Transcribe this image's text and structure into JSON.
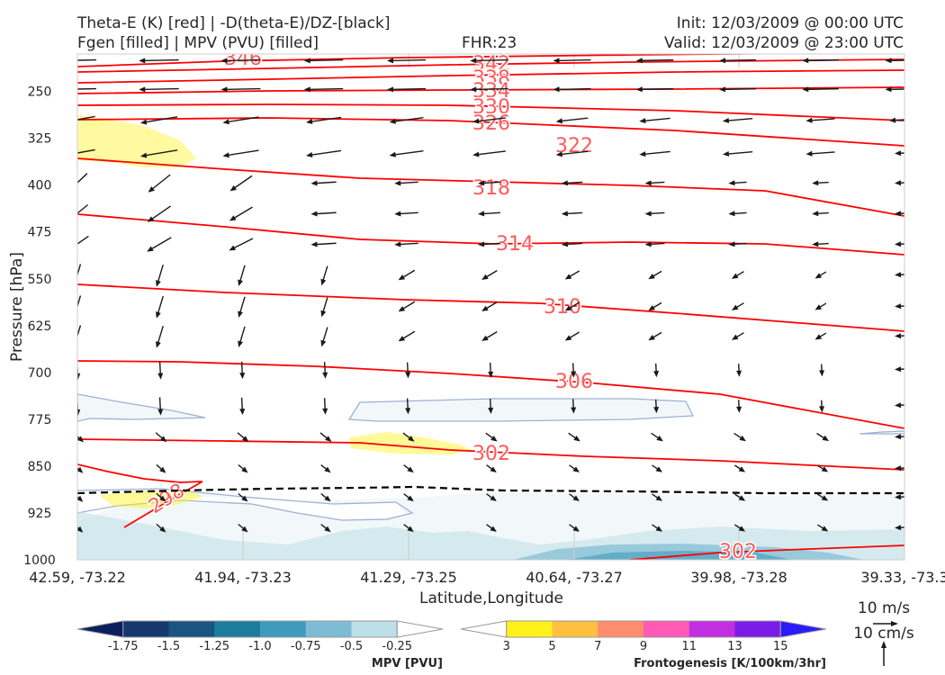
{
  "header": {
    "title_line1_left": "Theta-E (K) [red] | -D(theta-E)/DZ-[black]",
    "title_line2_left": "Fgen [filled] | MPV (PVU) [filled]",
    "fhr": "FHR:23",
    "init": "Init: 12/03/2009 @ 00:00 UTC",
    "valid": "Valid: 12/03/2009 @ 23:00 UTC"
  },
  "chart_data": {
    "type": "cross-section",
    "ylabel": "Pressure [hPa]",
    "xlabel": "Latitude,Longitude",
    "y_ticks": [
      250,
      325,
      400,
      475,
      550,
      625,
      700,
      775,
      850,
      925,
      1000
    ],
    "ylim": [
      1000,
      190
    ],
    "y_scale": "linear-inverted",
    "x_ticks": [
      "42.59, -73.22",
      "41.94, -73.23",
      "41.29, -73.25",
      "40.64, -73.27",
      "39.98, -73.28",
      "39.33, -73.3"
    ],
    "theta_e_contours": {
      "color": "#ff0000",
      "labels": [
        "346",
        "342",
        "338",
        "334",
        "330",
        "326",
        "322",
        "318",
        "314",
        "310",
        "306",
        "302",
        "298",
        "302"
      ]
    },
    "stability_line": {
      "color": "#000000",
      "style": "dashed"
    },
    "wind_vectors": {
      "color": "#1a1a1a"
    },
    "mpv_colorbar": {
      "label": "MPV [PVU]",
      "ticks": [
        "-1.75",
        "-1.5",
        "-1.25",
        "-1.0",
        "-0.75",
        "-0.5",
        "-0.25"
      ],
      "colors": [
        "#0b1f5e",
        "#16386e",
        "#1a5480",
        "#1c7c9e",
        "#3e9bbd",
        "#7dbcd4",
        "#bddfe8",
        "#ffffff"
      ]
    },
    "fgen_colorbar": {
      "label": "Frontogenesis [K/100km/3hr]",
      "ticks": [
        "3",
        "5",
        "7",
        "9",
        "11",
        "13",
        "15"
      ],
      "colors": [
        "#ffffff",
        "#fff21a",
        "#ffc040",
        "#ff8c6e",
        "#ff5ab4",
        "#c02fe0",
        "#7a1de6",
        "#2a1bff"
      ]
    },
    "reference_vectors": {
      "horizontal": "10 m/s",
      "vertical": "10 cm/s"
    }
  }
}
